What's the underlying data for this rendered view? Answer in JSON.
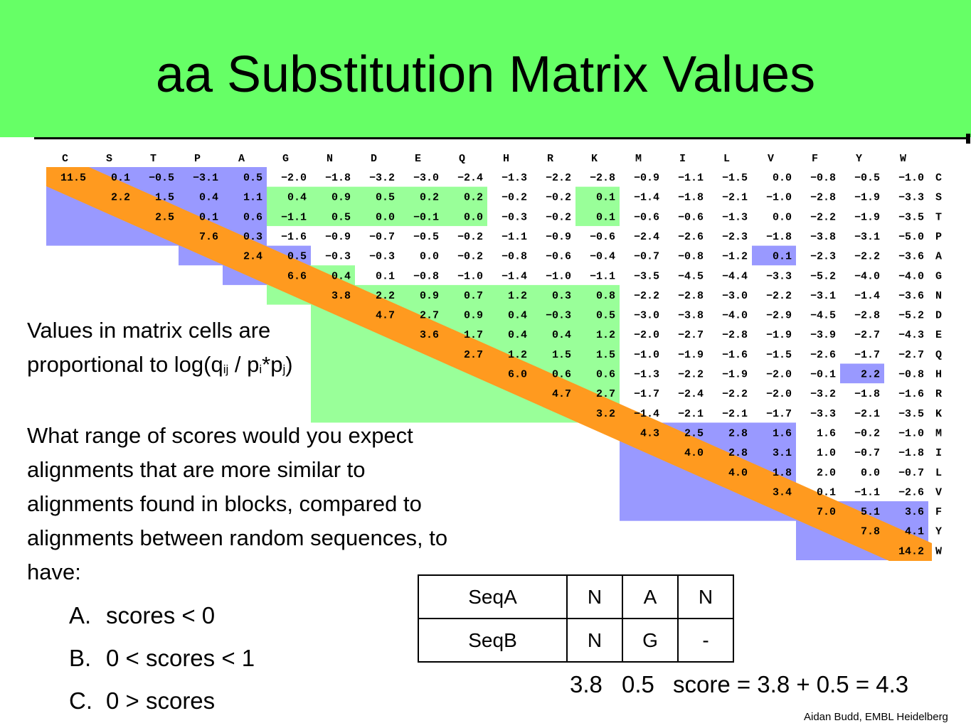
{
  "title": "aa Substitution Matrix Values",
  "matrix": {
    "residues": [
      "C",
      "S",
      "T",
      "P",
      "A",
      "G",
      "N",
      "D",
      "E",
      "Q",
      "H",
      "R",
      "K",
      "M",
      "I",
      "L",
      "V",
      "F",
      "Y",
      "W"
    ],
    "rows": [
      [
        "11.5",
        "0.1",
        "-0.5",
        "-3.1",
        "0.5",
        "-2.0",
        "-1.8",
        "-3.2",
        "-3.0",
        "-2.4",
        "-1.3",
        "-2.2",
        "-2.8",
        "-0.9",
        "-1.1",
        "-1.5",
        "0.0",
        "-0.8",
        "-0.5",
        "-1.0"
      ],
      [
        "2.2",
        "1.5",
        "0.4",
        "1.1",
        "0.4",
        "0.9",
        "0.5",
        "0.2",
        "0.2",
        "-0.2",
        "-0.2",
        "0.1",
        "-1.4",
        "-1.8",
        "-2.1",
        "-1.0",
        "-2.8",
        "-1.9",
        "-3.3"
      ],
      [
        "2.5",
        "0.1",
        "0.6",
        "-1.1",
        "0.5",
        "0.0",
        "-0.1",
        "0.0",
        "-0.3",
        "-0.2",
        "0.1",
        "-0.6",
        "-0.6",
        "-1.3",
        "0.0",
        "-2.2",
        "-1.9",
        "-3.5"
      ],
      [
        "7.6",
        "0.3",
        "-1.6",
        "-0.9",
        "-0.7",
        "-0.5",
        "-0.2",
        "-1.1",
        "-0.9",
        "-0.6",
        "-2.4",
        "-2.6",
        "-2.3",
        "-1.8",
        "-3.8",
        "-3.1",
        "-5.0"
      ],
      [
        "2.4",
        "0.5",
        "-0.3",
        "-0.3",
        "0.0",
        "-0.2",
        "-0.8",
        "-0.6",
        "-0.4",
        "-0.7",
        "-0.8",
        "-1.2",
        "0.1",
        "-2.3",
        "-2.2",
        "-3.6"
      ],
      [
        "6.6",
        "0.4",
        "0.1",
        "-0.8",
        "-1.0",
        "-1.4",
        "-1.0",
        "-1.1",
        "-3.5",
        "-4.5",
        "-4.4",
        "-3.3",
        "-5.2",
        "-4.0",
        "-4.0"
      ],
      [
        "3.8",
        "2.2",
        "0.9",
        "0.7",
        "1.2",
        "0.3",
        "0.8",
        "-2.2",
        "-2.8",
        "-3.0",
        "-2.2",
        "-3.1",
        "-1.4",
        "-3.6"
      ],
      [
        "4.7",
        "2.7",
        "0.9",
        "0.4",
        "-0.3",
        "0.5",
        "-3.0",
        "-3.8",
        "-4.0",
        "-2.9",
        "-4.5",
        "-2.8",
        "-5.2"
      ],
      [
        "3.6",
        "1.7",
        "0.4",
        "0.4",
        "1.2",
        "-2.0",
        "-2.7",
        "-2.8",
        "-1.9",
        "-3.9",
        "-2.7",
        "-4.3"
      ],
      [
        "2.7",
        "1.2",
        "1.5",
        "1.5",
        "-1.0",
        "-1.9",
        "-1.6",
        "-1.5",
        "-2.6",
        "-1.7",
        "-2.7"
      ],
      [
        "6.0",
        "0.6",
        "0.6",
        "-1.3",
        "-2.2",
        "-1.9",
        "-2.0",
        "-0.1",
        "2.2",
        "-0.8"
      ],
      [
        "4.7",
        "2.7",
        "-1.7",
        "-2.4",
        "-2.2",
        "-2.0",
        "-3.2",
        "-1.8",
        "-1.6"
      ],
      [
        "3.2",
        "-1.4",
        "-2.1",
        "-2.1",
        "-1.7",
        "-3.3",
        "-2.1",
        "-3.5"
      ],
      [
        "4.3",
        "2.5",
        "2.8",
        "1.6",
        "1.6",
        "-0.2",
        "-1.0"
      ],
      [
        "4.0",
        "2.8",
        "3.1",
        "1.0",
        "-0.7",
        "-1.8"
      ],
      [
        "4.0",
        "1.8",
        "2.0",
        "0.0",
        "-0.7"
      ],
      [
        "3.4",
        "0.1",
        "-1.1",
        "-2.6"
      ],
      [
        "7.0",
        "5.1",
        "3.6"
      ],
      [
        "7.8",
        "4.1"
      ],
      [
        "14.2"
      ]
    ],
    "colors": {
      "diagonal": "#ff9a1f",
      "blue": "#9999ff",
      "green": "#99ff99"
    }
  },
  "description": {
    "before_q": "Values in matrix cells are",
    "line2_a": "proportional to log(q",
    "sub_ij": "ij",
    "mid": " / p",
    "sub_i": "i",
    "star": "*p",
    "sub_j": "j",
    "close": ")"
  },
  "question": [
    "What range of scores would you expect",
    "alignments that are more similar to",
    "alignments found in blocks, compared to",
    "alignments between random sequences, to",
    "have:"
  ],
  "options": [
    {
      "letter": "A.",
      "text": "scores < 0"
    },
    {
      "letter": "B.",
      "text": "0 < scores < 1"
    },
    {
      "letter": "C.",
      "text": "0 > scores"
    }
  ],
  "alignment": {
    "rows": [
      {
        "label": "SeqA",
        "residues": [
          "N",
          "A",
          "N"
        ]
      },
      {
        "label": "SeqB",
        "residues": [
          "N",
          "G",
          "-"
        ]
      }
    ],
    "pair_scores": [
      "3.8",
      "0.5"
    ],
    "score_text": "score = 3.8 + 0.5 = 4.3"
  },
  "credit": "Aidan Budd, EMBL Heidelberg"
}
